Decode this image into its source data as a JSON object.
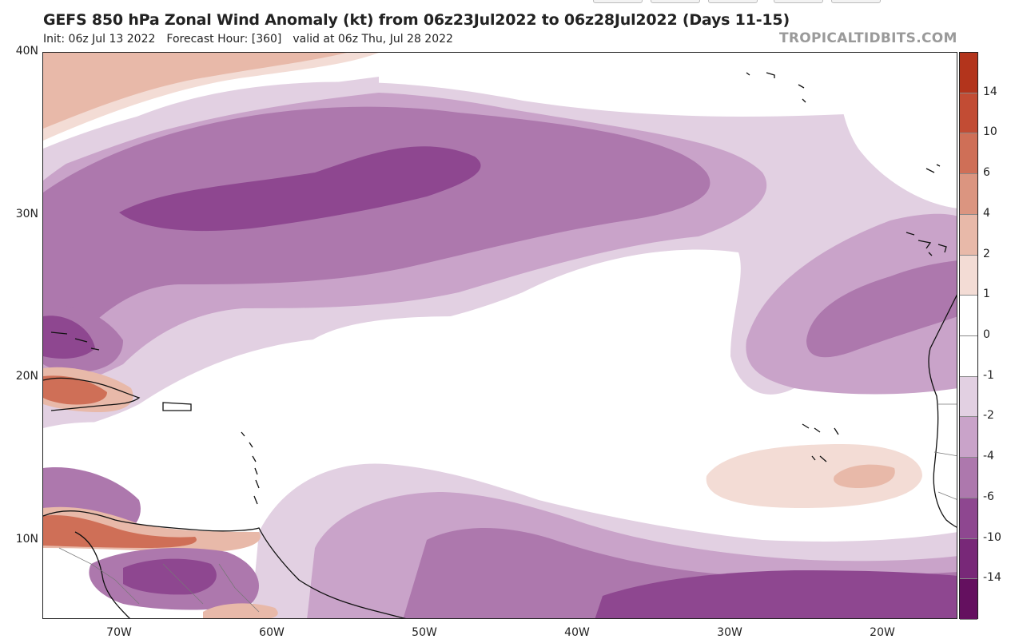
{
  "title": "GEFS 850 hPa Zonal Wind Anomaly (kt) from 06z23Jul2022 to 06z28Jul2022 (Days 11-15)",
  "subtitle": {
    "init": "Init: 06z Jul 13 2022",
    "forecast_hour": "Forecast Hour: [360]",
    "valid": "valid at 06z Thu, Jul 28 2022"
  },
  "watermark": "TROPICALTIDBITS.COM",
  "map": {
    "lat_labels": [
      "40N",
      "30N",
      "20N",
      "10N"
    ],
    "lon_labels": [
      "70W",
      "60W",
      "50W",
      "40W",
      "30W",
      "20W"
    ],
    "colors": {
      "pos_1_2": "#f3dcd5",
      "pos_2_4": "#e8b9a9",
      "pos_4_6": "#db9580",
      "pos_6_10": "#cf6f57",
      "pos_10_14": "#c24c34",
      "pos_14_plus": "#b3341c",
      "neutral": "#ffffff",
      "neg_1_2": "#e2d0e2",
      "neg_2_4": "#c9a3c9",
      "neg_4_6": "#ad78ad",
      "neg_6_10": "#8e4790",
      "neg_10_14": "#782878",
      "neg_14_plus": "#64105f"
    }
  },
  "colorbar": {
    "labels": [
      "14",
      "10",
      "6",
      "4",
      "2",
      "1",
      "0",
      "-1",
      "-2",
      "-4",
      "-6",
      "-10",
      "-14"
    ],
    "segments": [
      "#b3341c",
      "#c24c34",
      "#cf6f57",
      "#db9580",
      "#e8b9a9",
      "#f3dcd5",
      "#ffffff",
      "#ffffff",
      "#e2d0e2",
      "#c9a3c9",
      "#ad78ad",
      "#8e4790",
      "#782878",
      "#64105f"
    ]
  }
}
